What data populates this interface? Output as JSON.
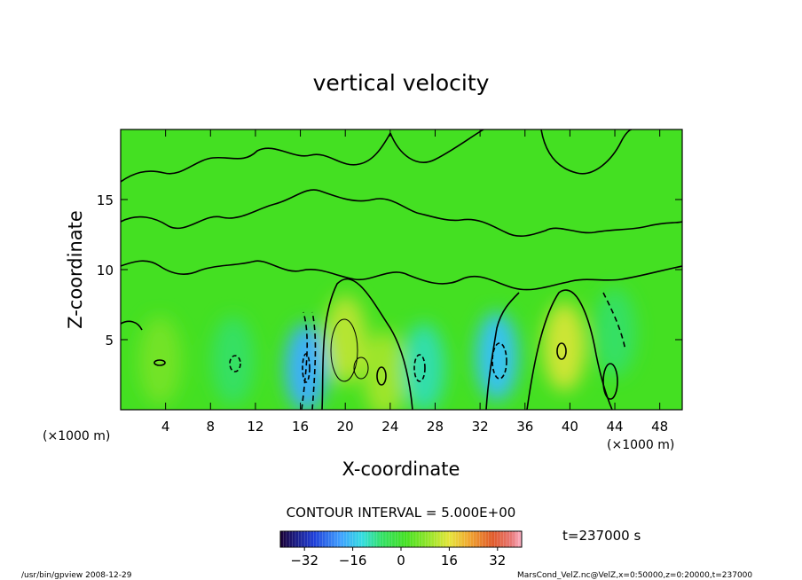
{
  "chart_data": {
    "type": "heatmap",
    "title": "vertical velocity",
    "xlabel": "X-coordinate",
    "ylabel": "Z-coordinate",
    "x_unit": "(×1000 m)",
    "x_unit_right": "(×1000 m)",
    "x_range": [
      0,
      50
    ],
    "y_range": [
      0,
      20
    ],
    "x_ticks": [
      "4",
      "8",
      "12",
      "16",
      "20",
      "24",
      "28",
      "32",
      "36",
      "40",
      "44",
      "48"
    ],
    "y_ticks": [
      "5",
      "10",
      "15"
    ],
    "contour_interval_label": "CONTOUR INTERVAL = 5.000E+00",
    "time_label": "t=237000 s",
    "colorbar": {
      "range": [
        -40,
        40
      ],
      "ticks": [
        "−32",
        "−16",
        "0",
        "16",
        "32"
      ]
    },
    "cells": [
      {
        "x": 3.5,
        "z": 3.5,
        "value": 6
      },
      {
        "x": 10.0,
        "z": 3.5,
        "value": -6
      },
      {
        "x": 16.5,
        "z": 3.0,
        "value": -18
      },
      {
        "x": 20.0,
        "z": 5.0,
        "value": 12
      },
      {
        "x": 23.5,
        "z": 2.5,
        "value": 10
      },
      {
        "x": 27.0,
        "z": 3.0,
        "value": -10
      },
      {
        "x": 33.5,
        "z": 3.8,
        "value": -16
      },
      {
        "x": 39.5,
        "z": 4.5,
        "value": 14
      },
      {
        "x": 44.0,
        "z": 5.5,
        "value": -6
      }
    ]
  },
  "footer": {
    "program": "/usr/bin/gpview  2008-12-29",
    "source": "MarsCond_VelZ.nc@VelZ,x=0:50000,z=0:20000,t=237000"
  }
}
